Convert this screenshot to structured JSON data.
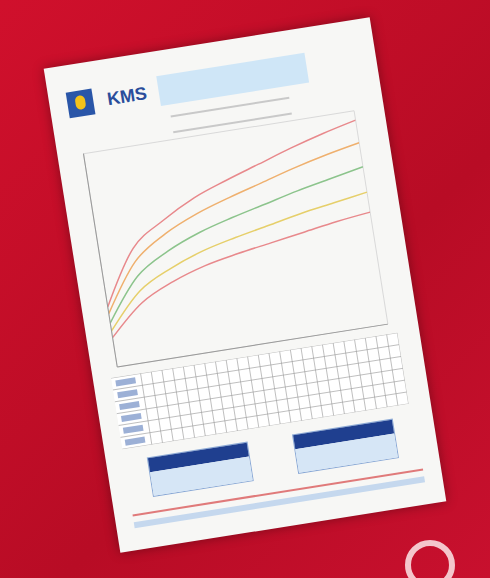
{
  "header": {
    "title": "KMS"
  },
  "chart_data": {
    "type": "line",
    "x": [
      0,
      3,
      6,
      9,
      12,
      15,
      18,
      21,
      24
    ],
    "xlim": [
      0,
      24
    ],
    "ylim": [
      0,
      16
    ],
    "xticks": [
      0,
      2,
      4,
      6,
      8,
      10,
      12,
      14,
      16,
      18,
      20,
      22,
      24
    ],
    "yticks": [
      0,
      2,
      4,
      6,
      8,
      10,
      12,
      14,
      16
    ],
    "grid": true,
    "tick_labels": false,
    "series": [
      {
        "color": "#e8898c",
        "values": [
          4.5,
          8.5,
          10.2,
          11.5,
          12.4,
          13.2,
          14,
          14.7,
          15.3
        ]
      },
      {
        "color": "#efb06e",
        "values": [
          4,
          7.5,
          9.2,
          10.3,
          11.1,
          11.8,
          12.5,
          13.1,
          13.6
        ]
      },
      {
        "color": "#8cc48c",
        "values": [
          3.3,
          6.4,
          7.9,
          8.9,
          9.6,
          10.2,
          10.8,
          11.3,
          11.8
        ]
      },
      {
        "color": "#e6cf6a",
        "values": [
          2.7,
          5.3,
          6.6,
          7.5,
          8.1,
          8.6,
          9.1,
          9.5,
          9.9
        ]
      },
      {
        "color": "#e8898c",
        "values": [
          2.2,
          4.4,
          5.6,
          6.4,
          6.9,
          7.3,
          7.7,
          8.1,
          8.4
        ]
      }
    ]
  }
}
